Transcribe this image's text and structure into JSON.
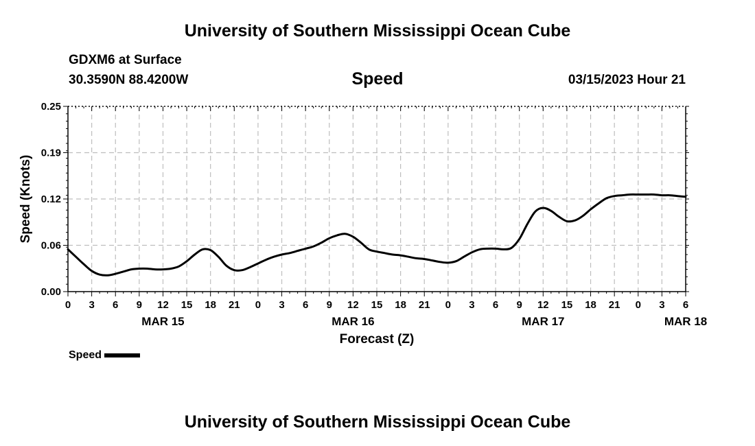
{
  "page": {
    "header_title": "University of Southern Mississippi Ocean Cube",
    "footer_title": "University of Southern Mississippi Ocean Cube",
    "station": "GDXM6 at Surface",
    "location": "30.3590N  88.4200W",
    "datetime": "03/15/2023 Hour 21"
  },
  "chart_data": {
    "type": "line",
    "title": "Speed",
    "xlabel": "Forecast (Z)",
    "ylabel": "Speed (Knots)",
    "ylim": [
      0,
      0.25
    ],
    "yticks": [
      "0.00",
      "0.06",
      "0.12",
      "0.19",
      "0.25"
    ],
    "ytick_values": [
      0,
      0.0625,
      0.125,
      0.1875,
      0.25
    ],
    "xlim": [
      0,
      78
    ],
    "xtick_labels": [
      "0",
      "3",
      "6",
      "9",
      "12",
      "15",
      "18",
      "21",
      "0",
      "3",
      "6",
      "9",
      "12",
      "15",
      "18",
      "21",
      "0",
      "3",
      "6",
      "9",
      "12",
      "15",
      "18",
      "21",
      "0",
      "3",
      "6"
    ],
    "date_labels": [
      {
        "label": "MAR 15",
        "hour": 12
      },
      {
        "label": "MAR 16",
        "hour": 36
      },
      {
        "label": "MAR 17",
        "hour": 60
      },
      {
        "label": "MAR 18",
        "hour": 78
      }
    ],
    "grid": true,
    "legend": {
      "label": "Speed",
      "placement": "bottom-left"
    },
    "series": [
      {
        "name": "Speed",
        "color": "#000000",
        "x": [
          0,
          1,
          2,
          3,
          4,
          5,
          6,
          7,
          8,
          9,
          10,
          11,
          12,
          13,
          14,
          15,
          16,
          17,
          18,
          19,
          20,
          21,
          22,
          23,
          24,
          25,
          26,
          27,
          28,
          29,
          30,
          31,
          32,
          33,
          34,
          35,
          36,
          37,
          38,
          39,
          40,
          41,
          42,
          43,
          44,
          45,
          46,
          47,
          48,
          49,
          50,
          51,
          52,
          53,
          54,
          55,
          56,
          57,
          58,
          59,
          60,
          61,
          62,
          63,
          64,
          65,
          66,
          67,
          68,
          69,
          70,
          71,
          72,
          73,
          74,
          75,
          76,
          77,
          78
        ],
        "values": [
          0.057,
          0.047,
          0.037,
          0.028,
          0.023,
          0.022,
          0.024,
          0.027,
          0.03,
          0.031,
          0.031,
          0.03,
          0.03,
          0.031,
          0.034,
          0.041,
          0.05,
          0.057,
          0.056,
          0.047,
          0.035,
          0.029,
          0.029,
          0.033,
          0.038,
          0.043,
          0.047,
          0.05,
          0.052,
          0.055,
          0.058,
          0.061,
          0.066,
          0.072,
          0.076,
          0.078,
          0.074,
          0.066,
          0.057,
          0.054,
          0.052,
          0.05,
          0.049,
          0.047,
          0.045,
          0.044,
          0.042,
          0.04,
          0.039,
          0.041,
          0.047,
          0.053,
          0.057,
          0.058,
          0.058,
          0.057,
          0.059,
          0.071,
          0.091,
          0.108,
          0.113,
          0.109,
          0.101,
          0.095,
          0.096,
          0.102,
          0.111,
          0.119,
          0.126,
          0.129,
          0.13,
          0.131,
          0.131,
          0.131,
          0.131,
          0.13,
          0.13,
          0.129,
          0.128
        ]
      }
    ]
  }
}
